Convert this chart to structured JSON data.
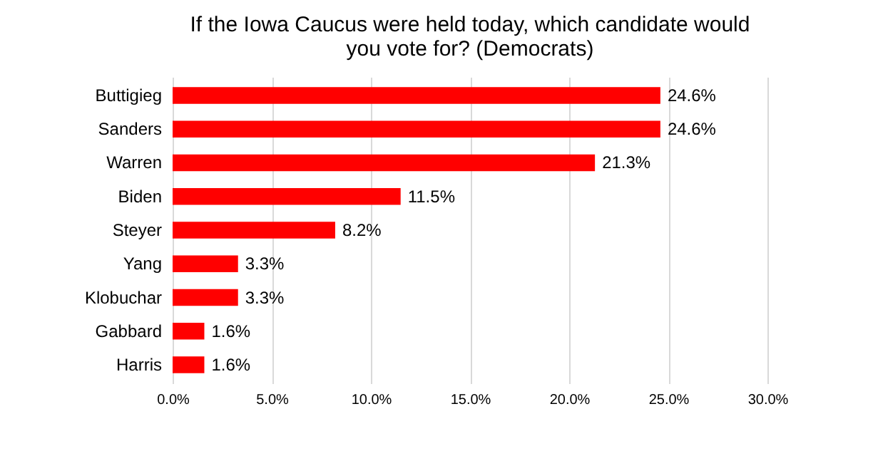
{
  "chart_data": {
    "type": "bar",
    "orientation": "horizontal",
    "title": "If the Iowa Caucus were held today, which candidate would you vote for? (Democrats)",
    "categories": [
      "Buttigieg",
      "Sanders",
      "Warren",
      "Biden",
      "Steyer",
      "Yang",
      "Klobuchar",
      "Gabbard",
      "Harris"
    ],
    "values": [
      24.6,
      24.6,
      21.3,
      11.5,
      8.2,
      3.3,
      3.3,
      1.6,
      1.6
    ],
    "value_labels": [
      "24.6%",
      "24.6%",
      "21.3%",
      "11.5%",
      "8.2%",
      "3.3%",
      "3.3%",
      "1.6%",
      "1.6%"
    ],
    "color": "#ff0000",
    "xlim": [
      0,
      30
    ],
    "xticks": [
      {
        "value": 0,
        "label": "0.0%"
      },
      {
        "value": 5,
        "label": "5.0%"
      },
      {
        "value": 10,
        "label": "10.0%"
      },
      {
        "value": 15,
        "label": "15.0%"
      },
      {
        "value": 20,
        "label": "20.0%"
      },
      {
        "value": 25,
        "label": "25.0%"
      },
      {
        "value": 30,
        "label": "30.0%"
      }
    ],
    "grid": "x"
  }
}
